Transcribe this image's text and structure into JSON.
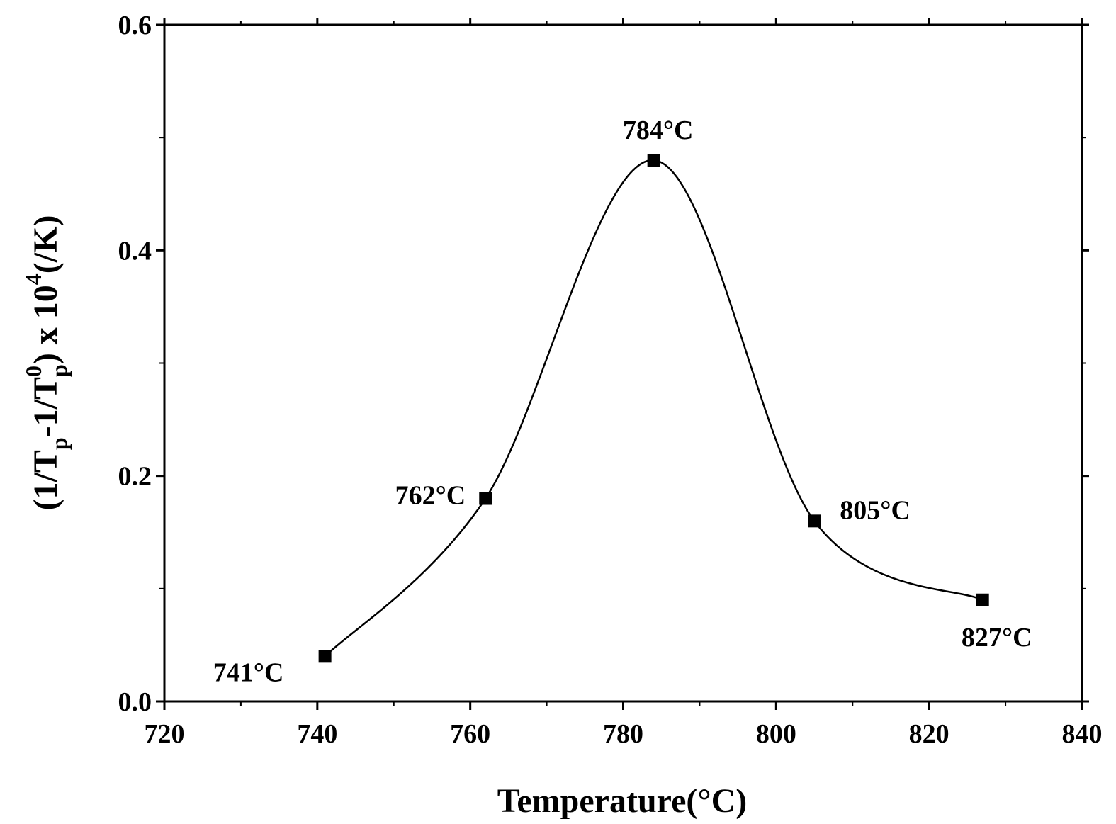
{
  "colors": {
    "axis": "#000000",
    "curve": "#000000",
    "marker": "#000000",
    "background": "#ffffff"
  },
  "chart_data": {
    "type": "scatter",
    "title": "",
    "xlabel": "Temperature(°C)",
    "ylabel": {
      "open": "(1/T",
      "sub1": "p",
      "mid": "-1/T",
      "sup": "0",
      "sub2": "p",
      "close": ") x 10",
      "exp": "4",
      "unit": "(/K)"
    },
    "xlim": [
      720,
      840
    ],
    "ylim": [
      0.0,
      0.6
    ],
    "x_major_ticks": [
      720,
      740,
      760,
      780,
      800,
      820,
      840
    ],
    "x_tick_labels": [
      "720",
      "740",
      "760",
      "780",
      "800",
      "820",
      "840"
    ],
    "x_minor_ticks": [
      730,
      750,
      770,
      790,
      810,
      830
    ],
    "y_major_ticks": [
      0.0,
      0.2,
      0.4,
      0.6
    ],
    "y_tick_labels": [
      "0.0",
      "0.2",
      "0.4",
      "0.6"
    ],
    "y_minor_ticks": [
      0.1,
      0.3,
      0.5
    ],
    "grid": false,
    "legend": "none",
    "marker": "filled-square",
    "curve": "smooth spline through points",
    "series": [
      {
        "x": [
          741,
          762,
          784,
          805,
          827
        ],
        "y": [
          0.04,
          0.18,
          0.48,
          0.16,
          0.09
        ]
      }
    ],
    "annotations": [
      {
        "text": "741°C",
        "x": 741,
        "y": 0.04,
        "anchor": "below-left"
      },
      {
        "text": "762°C",
        "x": 762,
        "y": 0.18,
        "anchor": "left"
      },
      {
        "text": "784°C",
        "x": 784,
        "y": 0.48,
        "anchor": "above"
      },
      {
        "text": "805°C",
        "x": 805,
        "y": 0.16,
        "anchor": "right"
      },
      {
        "text": "827°C",
        "x": 827,
        "y": 0.09,
        "anchor": "below"
      }
    ]
  }
}
